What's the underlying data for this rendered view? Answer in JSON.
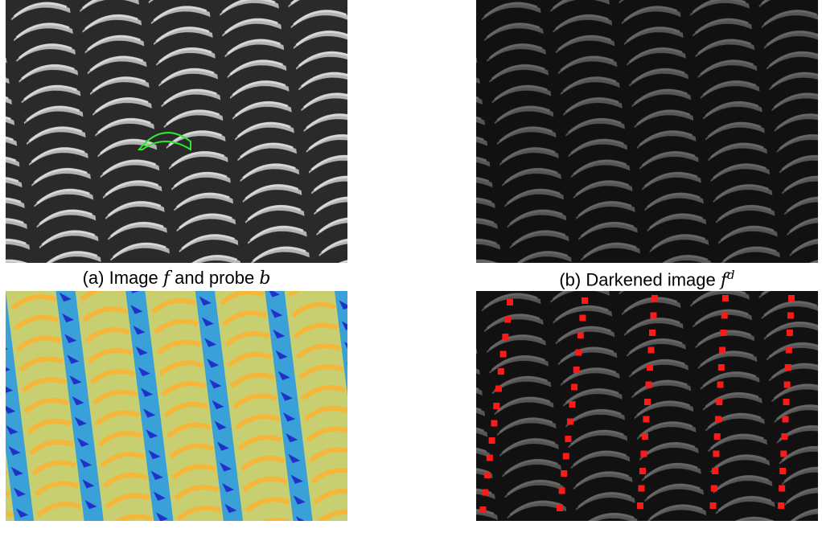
{
  "captions": [
    {
      "lead": "(a) Image ",
      "v1": "f",
      "mid": " and probe ",
      "v2": "b"
    },
    {
      "lead": "(b) Darkened image ",
      "v1": "f",
      "sup": "d"
    }
  ]
}
